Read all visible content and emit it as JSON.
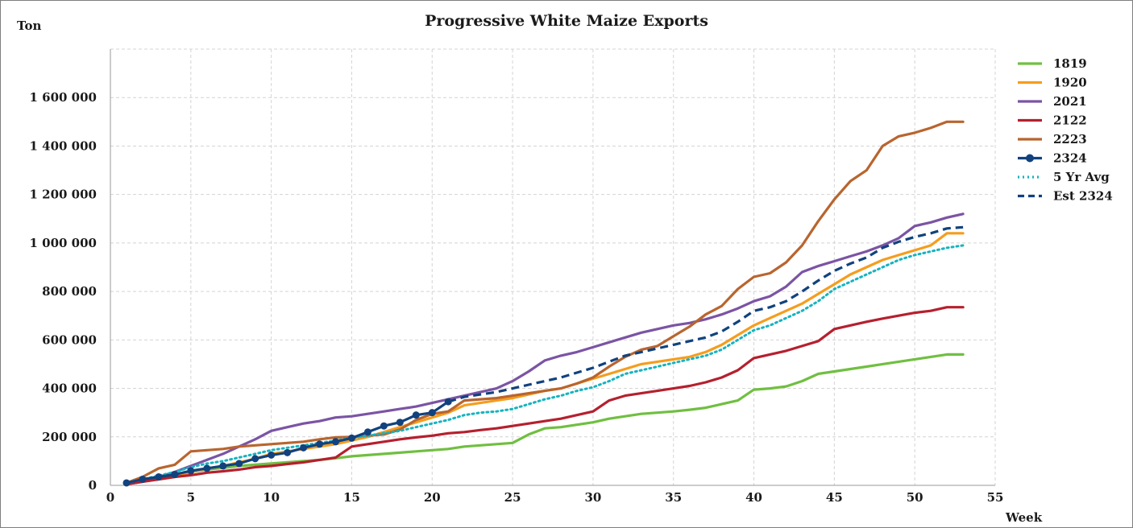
{
  "chart_data": {
    "type": "line",
    "title": "Progressive White Maize Exports",
    "xlabel": "Week",
    "ylabel": "Ton",
    "xlim": [
      0,
      55
    ],
    "ylim": [
      0,
      1800000
    ],
    "x_ticks": [
      0,
      5,
      10,
      15,
      20,
      25,
      30,
      35,
      40,
      45,
      50,
      55
    ],
    "y_ticks": [
      0,
      200000,
      400000,
      600000,
      800000,
      1000000,
      1200000,
      1400000,
      1600000
    ],
    "y_tick_labels": [
      "0",
      "200 000",
      "400 000",
      "600 000",
      "800 000",
      "1 000 000",
      "1 200 000",
      "1 400 000",
      "1 600 000"
    ],
    "grid": true,
    "legend_position": "right",
    "series": [
      {
        "name": "1819",
        "color": "#70bf41",
        "style": "solid",
        "x": [
          1,
          2,
          3,
          4,
          5,
          6,
          7,
          8,
          9,
          10,
          11,
          12,
          13,
          14,
          15,
          16,
          17,
          18,
          19,
          20,
          21,
          22,
          23,
          24,
          25,
          26,
          27,
          28,
          29,
          30,
          31,
          32,
          33,
          34,
          35,
          36,
          37,
          38,
          39,
          40,
          41,
          42,
          43,
          44,
          45,
          46,
          47,
          48,
          49,
          50,
          51,
          52,
          53
        ],
        "y": [
          10000,
          25000,
          35000,
          45000,
          55000,
          65000,
          72000,
          80000,
          85000,
          90000,
          95000,
          100000,
          105000,
          112000,
          120000,
          125000,
          130000,
          135000,
          140000,
          145000,
          150000,
          160000,
          165000,
          170000,
          175000,
          210000,
          235000,
          240000,
          250000,
          260000,
          275000,
          285000,
          295000,
          300000,
          305000,
          312000,
          320000,
          335000,
          350000,
          395000,
          400000,
          408000,
          430000,
          460000,
          470000,
          480000,
          490000,
          500000,
          510000,
          520000,
          530000,
          540000,
          540000
        ]
      },
      {
        "name": "1920",
        "color": "#f59d1e",
        "style": "solid",
        "x": [
          1,
          2,
          3,
          4,
          5,
          6,
          7,
          8,
          9,
          10,
          11,
          12,
          13,
          14,
          15,
          16,
          17,
          18,
          19,
          20,
          21,
          22,
          23,
          24,
          25,
          26,
          27,
          28,
          29,
          30,
          31,
          32,
          33,
          34,
          35,
          36,
          37,
          38,
          39,
          40,
          41,
          42,
          43,
          44,
          45,
          46,
          47,
          48,
          49,
          50,
          51,
          52,
          53
        ],
        "y": [
          10000,
          20000,
          25000,
          35000,
          55000,
          70000,
          80000,
          95000,
          110000,
          130000,
          140000,
          150000,
          160000,
          170000,
          185000,
          200000,
          220000,
          240000,
          260000,
          280000,
          300000,
          330000,
          340000,
          350000,
          360000,
          375000,
          390000,
          400000,
          420000,
          440000,
          460000,
          480000,
          500000,
          510000,
          520000,
          530000,
          550000,
          580000,
          620000,
          660000,
          690000,
          720000,
          750000,
          790000,
          830000,
          870000,
          900000,
          930000,
          950000,
          970000,
          990000,
          1040000,
          1040000
        ]
      },
      {
        "name": "2021",
        "color": "#7b54a4",
        "style": "solid",
        "x": [
          1,
          2,
          3,
          4,
          5,
          6,
          7,
          8,
          9,
          10,
          11,
          12,
          13,
          14,
          15,
          16,
          17,
          18,
          19,
          20,
          21,
          22,
          23,
          24,
          25,
          26,
          27,
          28,
          29,
          30,
          31,
          32,
          33,
          34,
          35,
          36,
          37,
          38,
          39,
          40,
          41,
          42,
          43,
          44,
          45,
          46,
          47,
          48,
          49,
          50,
          51,
          52,
          53
        ],
        "y": [
          5000,
          15000,
          35000,
          55000,
          80000,
          105000,
          130000,
          160000,
          190000,
          225000,
          240000,
          255000,
          265000,
          280000,
          285000,
          295000,
          305000,
          315000,
          325000,
          340000,
          355000,
          370000,
          385000,
          400000,
          430000,
          470000,
          515000,
          535000,
          550000,
          570000,
          590000,
          610000,
          630000,
          645000,
          660000,
          670000,
          685000,
          705000,
          730000,
          760000,
          780000,
          820000,
          880000,
          905000,
          925000,
          945000,
          965000,
          990000,
          1020000,
          1070000,
          1085000,
          1105000,
          1120000
        ]
      },
      {
        "name": "2122",
        "color": "#b5202e",
        "style": "solid",
        "x": [
          1,
          2,
          3,
          4,
          5,
          6,
          7,
          8,
          9,
          10,
          11,
          12,
          13,
          14,
          15,
          16,
          17,
          18,
          19,
          20,
          21,
          22,
          23,
          24,
          25,
          26,
          27,
          28,
          29,
          30,
          31,
          32,
          33,
          34,
          35,
          36,
          37,
          38,
          39,
          40,
          41,
          42,
          43,
          44,
          45,
          46,
          47,
          48,
          49,
          50,
          51,
          52,
          53
        ],
        "y": [
          5000,
          15000,
          25000,
          35000,
          42000,
          52000,
          58000,
          65000,
          75000,
          80000,
          88000,
          95000,
          105000,
          115000,
          160000,
          170000,
          180000,
          190000,
          198000,
          205000,
          215000,
          220000,
          228000,
          235000,
          245000,
          255000,
          265000,
          275000,
          290000,
          305000,
          350000,
          370000,
          380000,
          390000,
          400000,
          410000,
          425000,
          445000,
          475000,
          525000,
          540000,
          555000,
          575000,
          595000,
          645000,
          660000,
          675000,
          688000,
          700000,
          712000,
          720000,
          735000,
          735000
        ]
      },
      {
        "name": "2223",
        "color": "#b8652e",
        "style": "solid",
        "x": [
          1,
          2,
          3,
          4,
          5,
          6,
          7,
          8,
          9,
          10,
          11,
          12,
          13,
          14,
          15,
          16,
          17,
          18,
          19,
          20,
          21,
          22,
          23,
          24,
          25,
          26,
          27,
          28,
          29,
          30,
          31,
          32,
          33,
          34,
          35,
          36,
          37,
          38,
          39,
          40,
          41,
          42,
          43,
          44,
          45,
          46,
          47,
          48,
          49,
          50,
          51,
          52,
          53
        ],
        "y": [
          10000,
          35000,
          70000,
          85000,
          140000,
          145000,
          150000,
          160000,
          165000,
          170000,
          175000,
          180000,
          190000,
          198000,
          200000,
          205000,
          210000,
          230000,
          270000,
          295000,
          305000,
          350000,
          355000,
          360000,
          370000,
          380000,
          390000,
          400000,
          420000,
          445000,
          490000,
          530000,
          560000,
          575000,
          615000,
          655000,
          705000,
          740000,
          810000,
          860000,
          875000,
          920000,
          990000,
          1090000,
          1180000,
          1255000,
          1300000,
          1400000,
          1440000,
          1455000,
          1475000,
          1500000,
          1500000
        ]
      },
      {
        "name": "2324",
        "color": "#11427e",
        "style": "solid-markers",
        "x": [
          1,
          2,
          3,
          4,
          5,
          6,
          7,
          8,
          9,
          10,
          11,
          12,
          13,
          14,
          15,
          16,
          17,
          18,
          19,
          20,
          21
        ],
        "y": [
          10000,
          25000,
          35000,
          45000,
          60000,
          70000,
          80000,
          90000,
          110000,
          125000,
          135000,
          155000,
          170000,
          180000,
          195000,
          220000,
          245000,
          260000,
          290000,
          300000,
          345000
        ]
      },
      {
        "name": "5 Yr Avg",
        "color": "#17b3bf",
        "style": "dotted",
        "x": [
          1,
          2,
          3,
          4,
          5,
          6,
          7,
          8,
          9,
          10,
          11,
          12,
          13,
          14,
          15,
          16,
          17,
          18,
          19,
          20,
          21,
          22,
          23,
          24,
          25,
          26,
          27,
          28,
          29,
          30,
          31,
          32,
          33,
          34,
          35,
          36,
          37,
          38,
          39,
          40,
          41,
          42,
          43,
          44,
          45,
          46,
          47,
          48,
          49,
          50,
          51,
          52,
          53
        ],
        "y": [
          10000,
          25000,
          40000,
          55000,
          75000,
          90000,
          100000,
          115000,
          130000,
          145000,
          155000,
          165000,
          175000,
          185000,
          195000,
          205000,
          215000,
          225000,
          240000,
          255000,
          270000,
          290000,
          300000,
          305000,
          315000,
          335000,
          355000,
          370000,
          390000,
          405000,
          430000,
          460000,
          475000,
          490000,
          505000,
          520000,
          535000,
          560000,
          600000,
          640000,
          660000,
          690000,
          720000,
          760000,
          810000,
          840000,
          870000,
          900000,
          930000,
          950000,
          965000,
          980000,
          990000
        ]
      },
      {
        "name": "Est 2324",
        "color": "#11427e",
        "style": "dashed",
        "x": [
          21,
          22,
          23,
          24,
          25,
          26,
          27,
          28,
          29,
          30,
          31,
          32,
          33,
          34,
          35,
          36,
          37,
          38,
          39,
          40,
          41,
          42,
          43,
          44,
          45,
          46,
          47,
          48,
          49,
          50,
          51,
          52,
          53
        ],
        "y": [
          345000,
          365000,
          375000,
          385000,
          400000,
          415000,
          430000,
          445000,
          465000,
          485000,
          510000,
          535000,
          550000,
          565000,
          580000,
          595000,
          610000,
          635000,
          675000,
          720000,
          735000,
          760000,
          800000,
          845000,
          885000,
          915000,
          940000,
          980000,
          1005000,
          1025000,
          1040000,
          1060000,
          1065000
        ]
      }
    ]
  }
}
